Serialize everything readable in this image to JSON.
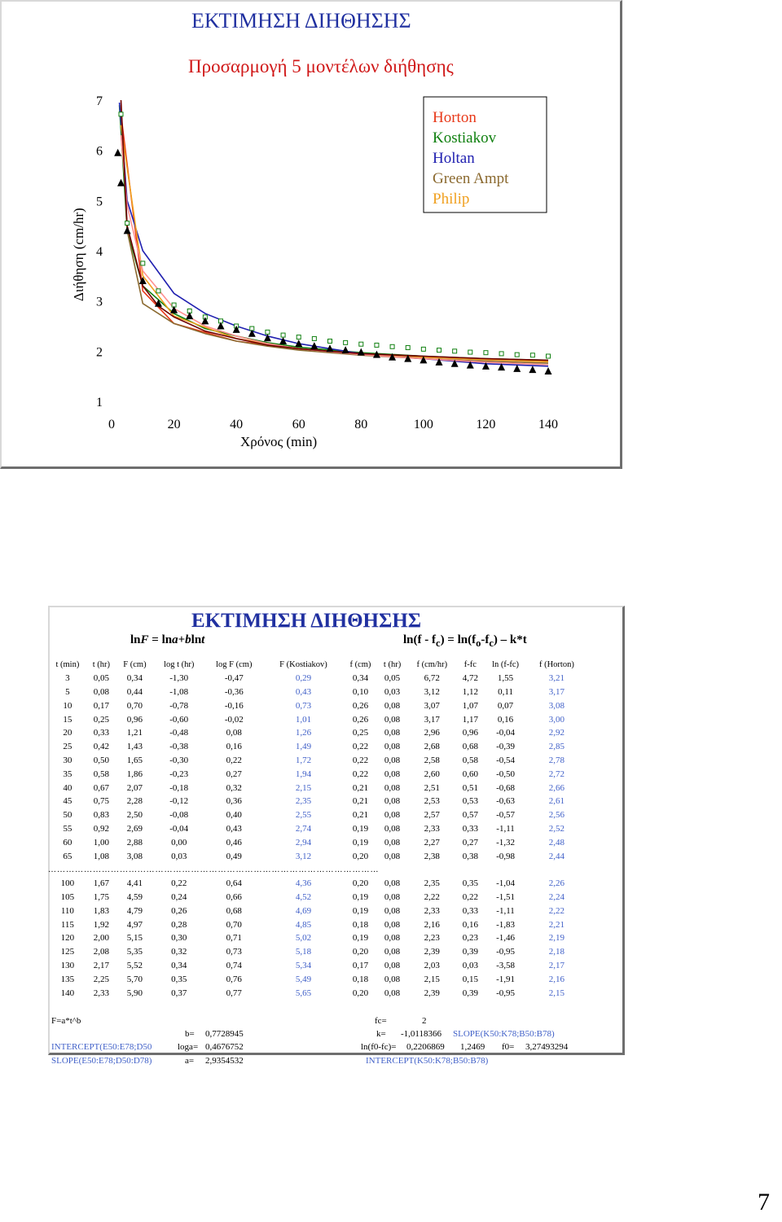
{
  "chart_panel": {
    "title": "ΕΚΤΙΜΗΣΗ ΔΙΗΘΗΣΗΣ",
    "subtitle": "Προσαρμογή 5 μοντέλων διήθησης"
  },
  "chart_data": {
    "type": "line",
    "title": "Προσαρμογή 5 μοντέλων διήθησης",
    "xlabel": "Χρόνος (min)",
    "ylabel": "Διήθηση (cm/hr)",
    "xlim": [
      0,
      140
    ],
    "ylim": [
      1,
      7
    ],
    "xticks": [
      0,
      20,
      40,
      60,
      80,
      100,
      120,
      140
    ],
    "yticks": [
      1,
      2,
      3,
      4,
      5,
      6,
      7
    ],
    "legend_position": "top-right",
    "grid": false,
    "series": [
      {
        "name": "Horton",
        "color": "#e83818",
        "x": [
          3,
          10,
          20,
          40,
          60,
          80,
          100,
          120,
          140
        ],
        "y": [
          6.72,
          3.2,
          2.55,
          2.2,
          2.05,
          1.95,
          1.88,
          1.83,
          1.8
        ]
      },
      {
        "name": "Kostiakov",
        "color": "#108010",
        "x": [
          2.5,
          5,
          10,
          20,
          30,
          40,
          50,
          60,
          80,
          100,
          120,
          140
        ],
        "y": [
          6.9,
          4.4,
          3.3,
          2.75,
          2.45,
          2.3,
          2.17,
          2.08,
          1.97,
          1.9,
          1.85,
          1.82
        ]
      },
      {
        "name": "Holtan",
        "color": "#2020b0",
        "x": [
          2.5,
          5,
          10,
          20,
          30,
          40,
          50,
          60,
          80,
          100,
          120,
          140
        ],
        "y": [
          6.95,
          5.0,
          4.0,
          3.15,
          2.75,
          2.5,
          2.3,
          2.15,
          1.95,
          1.85,
          1.75,
          1.7
        ]
      },
      {
        "name": "Green Ampt",
        "color": "#8b6a30",
        "x": [
          3,
          5,
          10,
          20,
          30,
          40,
          50,
          60,
          80,
          100,
          120,
          140
        ],
        "y": [
          6.9,
          4.4,
          2.95,
          2.55,
          2.35,
          2.2,
          2.1,
          2.02,
          1.92,
          1.85,
          1.8,
          1.76
        ]
      },
      {
        "name": "Philip",
        "color": "#f0a020",
        "x": [
          3,
          10,
          20,
          40,
          60,
          80,
          100,
          120,
          140
        ],
        "y": [
          6.5,
          3.5,
          2.7,
          2.25,
          2.05,
          1.95,
          1.88,
          1.83,
          1.79
        ]
      },
      {
        "name": "",
        "color": "#ff9090",
        "x": [
          3,
          5,
          10,
          20,
          30,
          40,
          50,
          60,
          80,
          100,
          120,
          140
        ],
        "y": [
          6.3,
          4.9,
          3.6,
          2.85,
          2.5,
          2.3,
          2.15,
          2.05,
          1.93,
          1.85,
          1.78,
          1.73
        ]
      },
      {
        "name": "",
        "color": "#700000",
        "x": [
          3,
          5,
          10,
          15,
          20,
          30,
          40,
          50,
          60,
          80,
          100,
          120,
          140
        ],
        "y": [
          7.0,
          4.5,
          3.3,
          2.9,
          2.68,
          2.4,
          2.25,
          2.12,
          2.05,
          1.95,
          1.9,
          1.85,
          1.82
        ]
      }
    ],
    "markers": [
      {
        "shape": "square",
        "color": "#108010",
        "x": [
          3,
          5,
          10,
          15,
          20,
          25,
          30,
          35,
          40,
          45,
          50,
          55,
          60,
          65,
          70,
          75,
          80,
          85,
          90,
          95,
          100,
          105,
          110,
          115,
          120,
          125,
          130,
          135,
          140
        ],
        "y": [
          6.72,
          4.55,
          3.75,
          3.2,
          2.92,
          2.8,
          2.68,
          2.6,
          2.5,
          2.45,
          2.38,
          2.32,
          2.28,
          2.25,
          2.2,
          2.17,
          2.14,
          2.12,
          2.09,
          2.07,
          2.04,
          2.02,
          2.0,
          1.98,
          1.97,
          1.95,
          1.93,
          1.92,
          1.9
        ]
      },
      {
        "shape": "triangle",
        "color": "#000000",
        "x": [
          2,
          3,
          5,
          10,
          15,
          20,
          25,
          30,
          35,
          40,
          45,
          50,
          55,
          60,
          65,
          70,
          75,
          80,
          85,
          90,
          95,
          100,
          105,
          110,
          115,
          120,
          125,
          130,
          135,
          140
        ],
        "y": [
          5.95,
          5.35,
          4.4,
          3.4,
          2.95,
          2.82,
          2.7,
          2.6,
          2.5,
          2.43,
          2.35,
          2.26,
          2.2,
          2.15,
          2.1,
          2.05,
          2.02,
          1.98,
          1.93,
          1.88,
          1.85,
          1.82,
          1.78,
          1.75,
          1.72,
          1.7,
          1.68,
          1.65,
          1.63,
          1.6
        ]
      }
    ]
  },
  "table_panel": {
    "title": "ΕΚΤΙΜΗΣΗ ΔΙΗΘΗΣΗΣ",
    "left_eq": "lnF = lna+blnt",
    "right_eq": "ln(f - f c ) = ln(f o -f c )  k*t",
    "headers": [
      "t (min)",
      "t (hr)",
      "F (cm)",
      "log t (hr)",
      "log F (cm)",
      "F (Kostiakov)",
      "f (cm)",
      "t (hr)",
      "f (cm/hr)",
      "f-fc",
      "ln (f-fc)",
      "f (Horton)"
    ],
    "rows": [
      [
        "3",
        "0,05",
        "0,34",
        "-1,30",
        "-0,47",
        "0,29",
        "0,34",
        "0,05",
        "6,72",
        "4,72",
        "1,55",
        "3,21"
      ],
      [
        "5",
        "0,08",
        "0,44",
        "-1,08",
        "-0,36",
        "0,43",
        "0,10",
        "0,03",
        "3,12",
        "1,12",
        "0,11",
        "3,17"
      ],
      [
        "10",
        "0,17",
        "0,70",
        "-0,78",
        "-0,16",
        "0,73",
        "0,26",
        "0,08",
        "3,07",
        "1,07",
        "0,07",
        "3,08"
      ],
      [
        "15",
        "0,25",
        "0,96",
        "-0,60",
        "-0,02",
        "1,01",
        "0,26",
        "0,08",
        "3,17",
        "1,17",
        "0,16",
        "3,00"
      ],
      [
        "20",
        "0,33",
        "1,21",
        "-0,48",
        "0,08",
        "1,26",
        "0,25",
        "0,08",
        "2,96",
        "0,96",
        "-0,04",
        "2,92"
      ],
      [
        "25",
        "0,42",
        "1,43",
        "-0,38",
        "0,16",
        "1,49",
        "0,22",
        "0,08",
        "2,68",
        "0,68",
        "-0,39",
        "2,85"
      ],
      [
        "30",
        "0,50",
        "1,65",
        "-0,30",
        "0,22",
        "1,72",
        "0,22",
        "0,08",
        "2,58",
        "0,58",
        "-0,54",
        "2,78"
      ],
      [
        "35",
        "0,58",
        "1,86",
        "-0,23",
        "0,27",
        "1,94",
        "0,22",
        "0,08",
        "2,60",
        "0,60",
        "-0,50",
        "2,72"
      ],
      [
        "40",
        "0,67",
        "2,07",
        "-0,18",
        "0,32",
        "2,15",
        "0,21",
        "0,08",
        "2,51",
        "0,51",
        "-0,68",
        "2,66"
      ],
      [
        "45",
        "0,75",
        "2,28",
        "-0,12",
        "0,36",
        "2,35",
        "0,21",
        "0,08",
        "2,53",
        "0,53",
        "-0,63",
        "2,61"
      ],
      [
        "50",
        "0,83",
        "2,50",
        "-0,08",
        "0,40",
        "2,55",
        "0,21",
        "0,08",
        "2,57",
        "0,57",
        "-0,57",
        "2,56"
      ],
      [
        "55",
        "0,92",
        "2,69",
        "-0,04",
        "0,43",
        "2,74",
        "0,19",
        "0,08",
        "2,33",
        "0,33",
        "-1,11",
        "2,52"
      ],
      [
        "60",
        "1,00",
        "2,88",
        "0,00",
        "0,46",
        "2,94",
        "0,19",
        "0,08",
        "2,27",
        "0,27",
        "-1,32",
        "2,48"
      ],
      [
        "65",
        "1,08",
        "3,08",
        "0,03",
        "0,49",
        "3,12",
        "0,20",
        "0,08",
        "2,38",
        "0,38",
        "-0,98",
        "2,44"
      ]
    ],
    "separator": "…………………………...……………………………………………………………………",
    "rows2": [
      [
        "100",
        "1,67",
        "4,41",
        "0,22",
        "0,64",
        "4,36",
        "0,20",
        "0,08",
        "2,35",
        "0,35",
        "-1,04",
        "2,26"
      ],
      [
        "105",
        "1,75",
        "4,59",
        "0,24",
        "0,66",
        "4,52",
        "0,19",
        "0,08",
        "2,22",
        "0,22",
        "-1,51",
        "2,24"
      ],
      [
        "110",
        "1,83",
        "4,79",
        "0,26",
        "0,68",
        "4,69",
        "0,19",
        "0,08",
        "2,33",
        "0,33",
        "-1,11",
        "2,22"
      ],
      [
        "115",
        "1,92",
        "4,97",
        "0,28",
        "0,70",
        "4,85",
        "0,18",
        "0,08",
        "2,16",
        "0,16",
        "-1,83",
        "2,21"
      ],
      [
        "120",
        "2,00",
        "5,15",
        "0,30",
        "0,71",
        "5,02",
        "0,19",
        "0,08",
        "2,23",
        "0,23",
        "-1,46",
        "2,19"
      ],
      [
        "125",
        "2,08",
        "5,35",
        "0,32",
        "0,73",
        "5,18",
        "0,20",
        "0,08",
        "2,39",
        "0,39",
        "-0,95",
        "2,18"
      ],
      [
        "130",
        "2,17",
        "5,52",
        "0,34",
        "0,74",
        "5,34",
        "0,17",
        "0,08",
        "2,03",
        "0,03",
        "-3,58",
        "2,17"
      ],
      [
        "135",
        "2,25",
        "5,70",
        "0,35",
        "0,76",
        "5,49",
        "0,18",
        "0,08",
        "2,15",
        "0,15",
        "-1,91",
        "2,16"
      ],
      [
        "140",
        "2,33",
        "5,90",
        "0,37",
        "0,77",
        "5,65",
        "0,20",
        "0,08",
        "2,39",
        "0,39",
        "-0,95",
        "2,15"
      ]
    ],
    "footer": {
      "f_formula": "F=a*t^b",
      "intercept_formula": "INTERCEPT(E50:E78;D50",
      "slope_formula": "SLOPE(E50:E78;D50:D78)",
      "b_label": "b=",
      "b_value": "0,7728945",
      "loga_label": "loga=",
      "loga_value": "0,4676752",
      "a_label": "a=",
      "a_value": "2,9354532",
      "fc_label": "fc=",
      "fc_value": "2",
      "k_label": "k=",
      "k_value": "-1,0118366",
      "k_formula": "SLOPE(K50:K78;B50:B78)",
      "lnf_label": "ln(f0-fc)=",
      "lnf_value": "0,2206869",
      "lnf_value2": "1,2469",
      "f0_label": "f0=",
      "f0_value": "3,27493294",
      "intercept_k_formula": "INTERCEPT(K50:K78;B50:B78)"
    }
  },
  "page_number": "7"
}
